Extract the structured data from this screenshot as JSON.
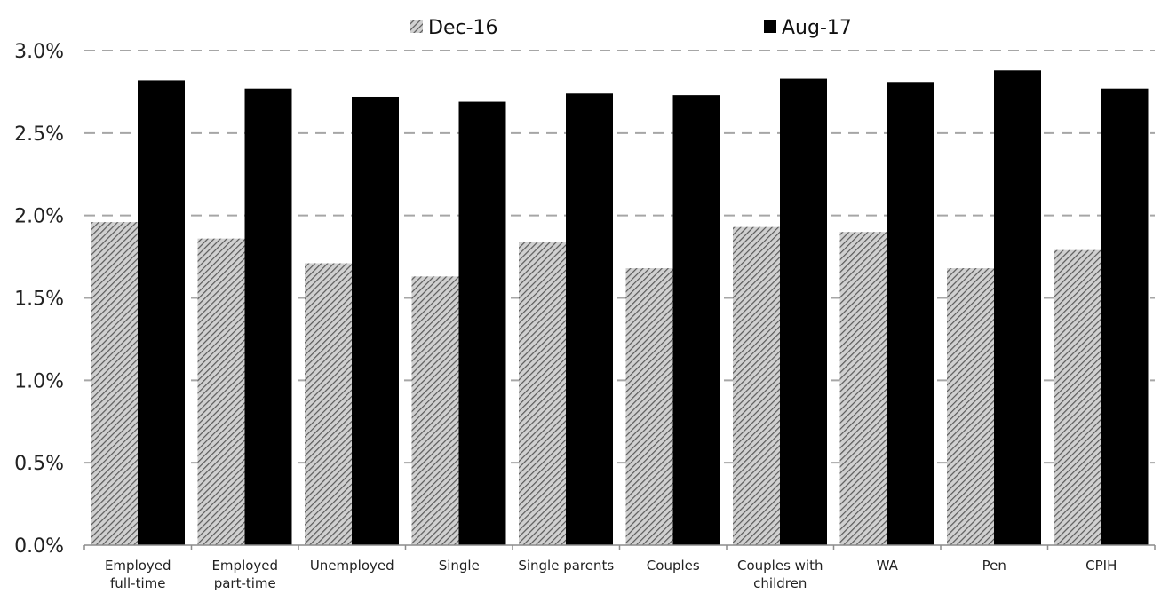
{
  "chart_data": {
    "type": "bar",
    "title": "",
    "xlabel": "",
    "ylabel": "",
    "categories": [
      [
        "Employed",
        "full-time"
      ],
      [
        "Employed",
        "part-time"
      ],
      [
        "Unemployed"
      ],
      [
        "Single"
      ],
      [
        "Single parents"
      ],
      [
        "Couples"
      ],
      [
        "Couples with",
        "children"
      ],
      [
        "WA"
      ],
      [
        "Pen"
      ],
      [
        "CPIH"
      ]
    ],
    "series": [
      {
        "name": "Dec-16",
        "pattern": "hatched",
        "color": "#7f7f7f",
        "values": [
          1.96,
          1.86,
          1.71,
          1.63,
          1.84,
          1.68,
          1.93,
          1.9,
          1.68,
          1.79
        ]
      },
      {
        "name": "Aug-17",
        "pattern": "solid",
        "color": "#000000",
        "values": [
          2.82,
          2.77,
          2.72,
          2.69,
          2.74,
          2.73,
          2.83,
          2.81,
          2.88,
          2.77
        ]
      }
    ],
    "ylim": [
      0,
      3.0
    ],
    "yticks": [
      "0.0%",
      "0.5%",
      "1.0%",
      "1.5%",
      "2.0%",
      "2.5%",
      "3.0%"
    ],
    "grid": true,
    "legend_position": "top"
  }
}
